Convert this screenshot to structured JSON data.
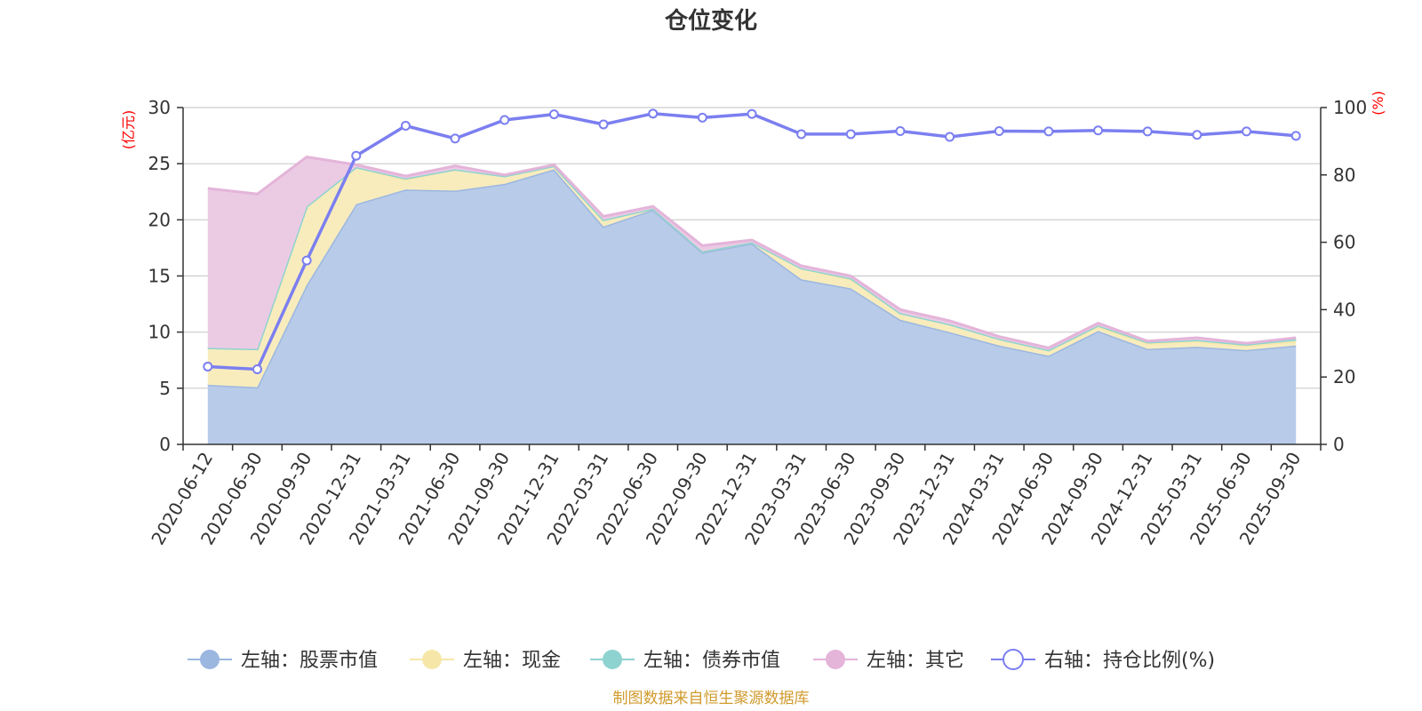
{
  "chart_data": {
    "type": "area",
    "title": "仓位变化",
    "left_unit": "(亿元)",
    "right_unit": "(%)",
    "left_ylim": [
      0,
      30
    ],
    "left_ticks": [
      "0",
      "5",
      "10",
      "15",
      "20",
      "25",
      "30"
    ],
    "right_ylim": [
      0,
      100
    ],
    "right_ticks": [
      "0",
      "20",
      "40",
      "60",
      "80",
      "100"
    ],
    "categories": [
      "2020-06-12",
      "2020-06-30",
      "2020-09-30",
      "2020-12-31",
      "2021-03-31",
      "2021-06-30",
      "2021-09-30",
      "2021-12-31",
      "2022-03-31",
      "2022-06-30",
      "2022-09-30",
      "2022-12-31",
      "2023-03-31",
      "2023-06-30",
      "2023-09-30",
      "2023-12-31",
      "2024-03-31",
      "2024-06-30",
      "2024-09-30",
      "2024-12-31",
      "2025-03-31",
      "2025-06-30",
      "2025-09-30"
    ],
    "series": [
      {
        "name": "左轴：股票市值",
        "axis": "left",
        "color": "#9bb7e0",
        "fill": "#b8cbe9",
        "values": [
          5.3,
          5.1,
          14.2,
          21.4,
          22.7,
          22.6,
          23.2,
          24.5,
          19.4,
          20.9,
          17.1,
          17.9,
          14.7,
          13.9,
          11.1,
          10.0,
          8.8,
          7.9,
          10.1,
          8.5,
          8.7,
          8.4,
          8.8
        ]
      },
      {
        "name": "左轴：现金",
        "axis": "left",
        "color": "#f6e7a8",
        "fill": "#f8ecbd",
        "values": [
          3.3,
          3.4,
          7.0,
          3.3,
          0.9,
          1.9,
          0.7,
          0.3,
          0.6,
          0.1,
          0.1,
          0.1,
          1.0,
          0.8,
          0.6,
          0.7,
          0.6,
          0.5,
          0.4,
          0.5,
          0.5,
          0.4,
          0.4
        ]
      },
      {
        "name": "左轴：债券市值",
        "axis": "left",
        "color": "#8fd3d0",
        "fill": "#a7dcda",
        "values": [
          0,
          0,
          0,
          0,
          0.1,
          0,
          0,
          0,
          0,
          0,
          0,
          0,
          0,
          0.1,
          0,
          0,
          0,
          0,
          0.1,
          0.1,
          0.1,
          0.1,
          0.2
        ]
      },
      {
        "name": "左轴：其它",
        "axis": "left",
        "color": "#e4b4d9",
        "fill": "#ebcbe4",
        "values": [
          14.2,
          13.8,
          4.4,
          0.2,
          0.2,
          0.3,
          0.1,
          0.1,
          0.3,
          0.2,
          0.5,
          0.2,
          0.2,
          0.2,
          0.3,
          0.3,
          0.2,
          0.2,
          0.2,
          0.1,
          0.2,
          0.1,
          0.1
        ]
      },
      {
        "name": "右轴：持仓比例(%)",
        "axis": "right",
        "color": "#7b7ff0",
        "values": [
          23.1,
          22.3,
          54.6,
          85.7,
          94.6,
          90.8,
          96.3,
          98.0,
          95.0,
          98.2,
          97.0,
          98.1,
          92.1,
          92.1,
          93.0,
          91.3,
          93.0,
          92.9,
          93.2,
          92.9,
          91.9,
          92.9,
          91.6
        ]
      }
    ],
    "source": "制图数据来自恒生聚源数据库"
  }
}
